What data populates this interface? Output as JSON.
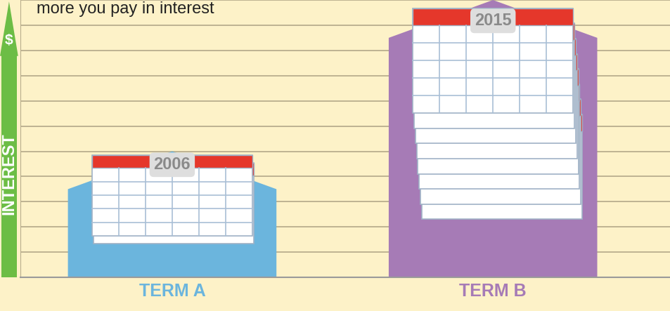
{
  "chart_data": {
    "type": "bar",
    "title": "more you pay in interest",
    "y_label": "INTEREST",
    "y_label_symbol": "$",
    "categories": [
      "TERM A",
      "TERM B"
    ],
    "values": [
      5,
      11
    ],
    "colors": [
      "#6bb5dd",
      "#a67bb6"
    ],
    "annotations": [
      "2006",
      "2015"
    ],
    "ylim": [
      0,
      11
    ],
    "yticks": [
      0,
      1,
      2,
      3,
      4,
      5,
      6,
      7,
      8,
      9,
      10,
      11
    ],
    "grid": true,
    "tick_labels": "x"
  }
}
